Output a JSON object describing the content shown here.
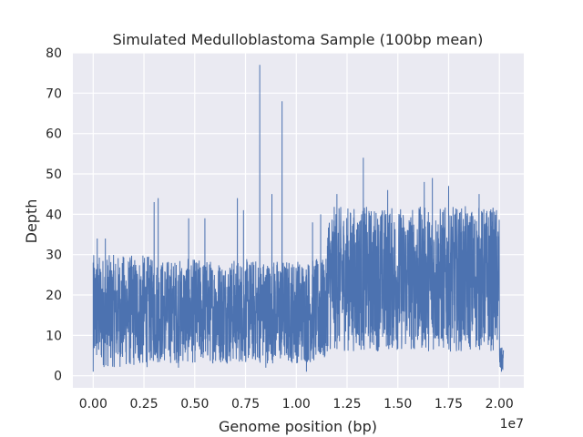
{
  "chart_data": {
    "type": "line",
    "title": "Simulated Medulloblastoma Sample (100bp mean)",
    "xlabel": "Genome position (bp)",
    "ylabel": "Depth",
    "x_offset_text": "1e7",
    "xlim": [
      -0.1,
      2.12
    ],
    "ylim": [
      -3,
      80
    ],
    "x_ticks": [
      0.0,
      0.25,
      0.5,
      0.75,
      1.0,
      1.25,
      1.5,
      1.75,
      2.0
    ],
    "x_tick_labels": [
      "0.00",
      "0.25",
      "0.50",
      "0.75",
      "1.00",
      "1.25",
      "1.50",
      "1.75",
      "2.00"
    ],
    "y_ticks": [
      0,
      10,
      20,
      30,
      40,
      50,
      60,
      70,
      80
    ],
    "y_tick_labels": [
      "0",
      "10",
      "20",
      "30",
      "40",
      "50",
      "60",
      "70",
      "80"
    ],
    "grid": true,
    "colors": {
      "background": "#eaeaf2",
      "grid": "#ffffff",
      "line": "#4c72b0",
      "text": "#262626"
    },
    "series": [
      {
        "x_start": 0.0,
        "x_end": 2.0,
        "segments": [
          {
            "x": [
              0.0,
              0.28
            ],
            "low": 2,
            "high": 30
          },
          {
            "x": [
              0.28,
              1.15
            ],
            "low": 3,
            "high": 29
          },
          {
            "x": [
              1.15,
              2.0
            ],
            "low": 6,
            "high": 42
          },
          {
            "x": [
              2.0,
              2.02
            ],
            "low": 1,
            "high": 7
          }
        ],
        "peaks": [
          {
            "x": 0.0,
            "y": 28
          },
          {
            "x": 0.02,
            "y": 34
          },
          {
            "x": 0.06,
            "y": 34
          },
          {
            "x": 0.3,
            "y": 43
          },
          {
            "x": 0.32,
            "y": 44
          },
          {
            "x": 0.47,
            "y": 39
          },
          {
            "x": 0.55,
            "y": 39
          },
          {
            "x": 0.71,
            "y": 44
          },
          {
            "x": 0.74,
            "y": 41
          },
          {
            "x": 0.82,
            "y": 77
          },
          {
            "x": 0.88,
            "y": 45
          },
          {
            "x": 0.93,
            "y": 68
          },
          {
            "x": 1.08,
            "y": 38
          },
          {
            "x": 1.12,
            "y": 40
          },
          {
            "x": 1.2,
            "y": 45
          },
          {
            "x": 1.33,
            "y": 54
          },
          {
            "x": 1.45,
            "y": 46
          },
          {
            "x": 1.63,
            "y": 48
          },
          {
            "x": 1.67,
            "y": 49
          },
          {
            "x": 1.75,
            "y": 47
          },
          {
            "x": 1.9,
            "y": 45
          }
        ],
        "dips": [
          {
            "x": 0.0,
            "y": 1
          },
          {
            "x": 0.42,
            "y": 2
          },
          {
            "x": 0.85,
            "y": 2
          },
          {
            "x": 1.05,
            "y": 1
          },
          {
            "x": 2.01,
            "y": 1
          }
        ]
      }
    ]
  }
}
